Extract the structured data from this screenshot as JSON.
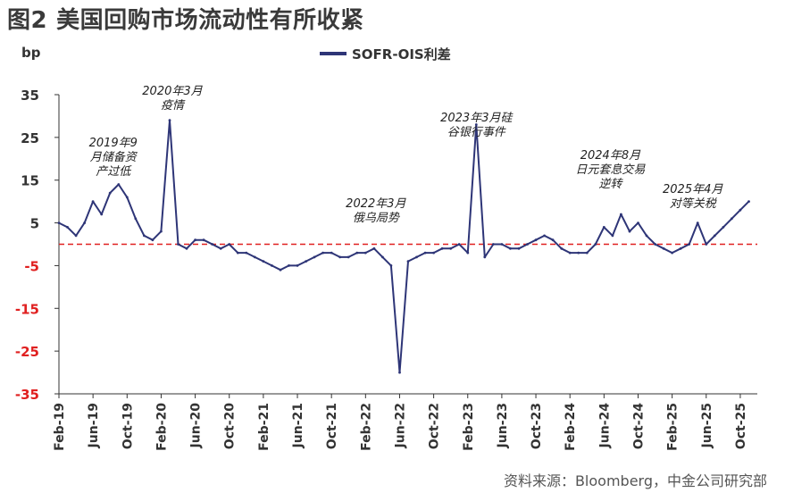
{
  "figure": {
    "number": "图2",
    "title": "美国回购市场流动性有所收紧",
    "source": "资料来源：Bloomberg，中金公司研究部"
  },
  "colors": {
    "series": "#2e3577",
    "zero_line": "#e02020",
    "negative_tick": "#e02020",
    "axis": "#333333",
    "annotation": "#222222"
  },
  "chart_data": {
    "type": "line",
    "title": "",
    "xlabel": "",
    "ylabel": "bp",
    "ylim": [
      -35,
      35
    ],
    "yticks": [
      35,
      25,
      15,
      5,
      -5,
      -15,
      -25,
      -35
    ],
    "xlim": [
      "2019-02",
      "2025-12"
    ],
    "xticks": [
      "Feb-19",
      "Jun-19",
      "Oct-19",
      "Feb-20",
      "Jun-20",
      "Oct-20",
      "Feb-21",
      "Jun-21",
      "Oct-21",
      "Feb-22",
      "Jun-22",
      "Oct-22",
      "Feb-23",
      "Jun-23",
      "Oct-23",
      "Feb-24",
      "Jun-24",
      "Oct-24",
      "Feb-25",
      "Jun-25",
      "Oct-25"
    ],
    "grid": false,
    "legend": {
      "position": "top-center",
      "entries": [
        "SOFR-OIS利差"
      ]
    },
    "reference_line": {
      "y": 0,
      "style": "dashed"
    },
    "series": [
      {
        "name": "SOFR-OIS利差",
        "x": [
          "2019-02",
          "2019-03",
          "2019-04",
          "2019-05",
          "2019-06",
          "2019-07",
          "2019-08",
          "2019-09",
          "2019-10",
          "2019-11",
          "2019-12",
          "2020-01",
          "2020-02",
          "2020-03",
          "2020-04",
          "2020-05",
          "2020-06",
          "2020-07",
          "2020-08",
          "2020-09",
          "2020-10",
          "2020-11",
          "2020-12",
          "2021-01",
          "2021-02",
          "2021-03",
          "2021-04",
          "2021-05",
          "2021-06",
          "2021-07",
          "2021-08",
          "2021-09",
          "2021-10",
          "2021-11",
          "2021-12",
          "2022-01",
          "2022-02",
          "2022-03",
          "2022-04",
          "2022-05",
          "2022-06",
          "2022-07",
          "2022-08",
          "2022-09",
          "2022-10",
          "2022-11",
          "2022-12",
          "2023-01",
          "2023-02",
          "2023-03",
          "2023-04",
          "2023-05",
          "2023-06",
          "2023-07",
          "2023-08",
          "2023-09",
          "2023-10",
          "2023-11",
          "2023-12",
          "2024-01",
          "2024-02",
          "2024-03",
          "2024-04",
          "2024-05",
          "2024-06",
          "2024-07",
          "2024-08",
          "2024-09",
          "2024-10",
          "2024-11",
          "2024-12",
          "2025-01",
          "2025-02",
          "2025-03",
          "2025-04",
          "2025-05",
          "2025-06",
          "2025-07",
          "2025-08",
          "2025-09",
          "2025-10",
          "2025-11"
        ],
        "values": [
          5,
          4,
          2,
          5,
          10,
          7,
          12,
          14,
          11,
          6,
          2,
          1,
          3,
          29,
          0,
          -1,
          1,
          1,
          0,
          -1,
          0,
          -2,
          -2,
          -3,
          -4,
          -5,
          -6,
          -5,
          -5,
          -4,
          -3,
          -2,
          -2,
          -3,
          -3,
          -2,
          -2,
          -1,
          -3,
          -5,
          -30,
          -4,
          -3,
          -2,
          -2,
          -1,
          -1,
          0,
          -2,
          28,
          -3,
          0,
          0,
          -1,
          -1,
          0,
          1,
          2,
          1,
          -1,
          -2,
          -2,
          -2,
          0,
          4,
          2,
          7,
          3,
          5,
          2,
          0,
          -1,
          -2,
          -1,
          0,
          5,
          0,
          2,
          4,
          6,
          8,
          10
        ]
      }
    ],
    "annotations": [
      {
        "x": "2019-09",
        "lines": [
          "2019年9",
          "月储备资",
          "产过低"
        ]
      },
      {
        "x": "2020-03",
        "lines": [
          "2020年3月",
          "疫情"
        ]
      },
      {
        "x": "2022-03",
        "lines": [
          "2022年3月",
          "俄乌局势"
        ]
      },
      {
        "x": "2023-03",
        "lines": [
          "2023年3月硅",
          "谷银行事件"
        ]
      },
      {
        "x": "2024-08",
        "lines": [
          "2024年8月",
          "日元套息交易",
          "逆转"
        ]
      },
      {
        "x": "2025-04",
        "lines": [
          "2025年4月",
          "对等关税"
        ]
      }
    ]
  }
}
